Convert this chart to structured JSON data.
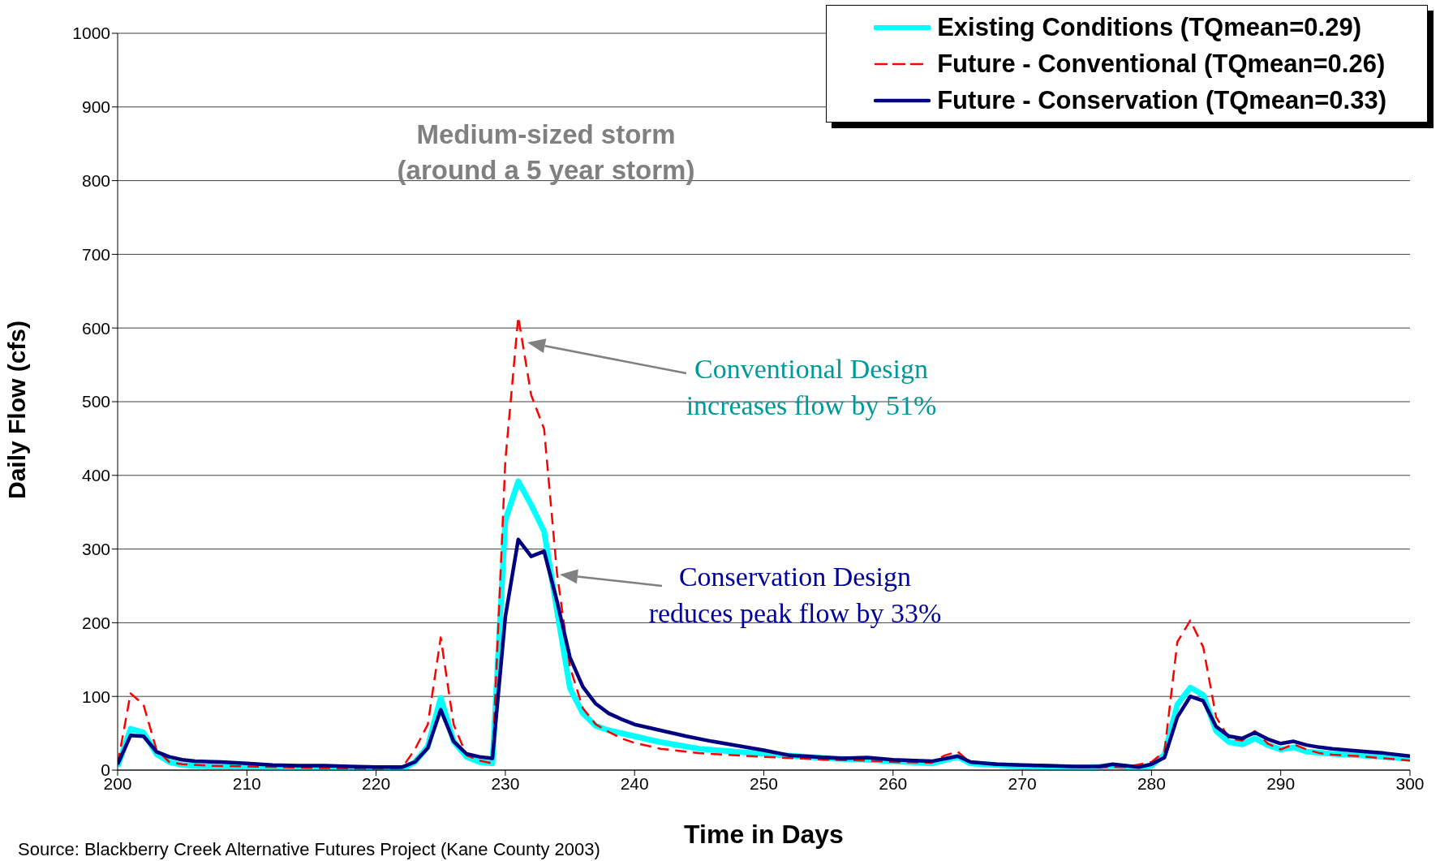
{
  "chart_data": {
    "type": "line",
    "xlabel": "Time in Days",
    "ylabel": "Daily Flow (cfs)",
    "xlim": [
      200,
      300
    ],
    "xticks": [
      200,
      210,
      220,
      230,
      240,
      250,
      260,
      270,
      280,
      290,
      300
    ],
    "ylim": [
      0,
      1000
    ],
    "yticks": [
      0,
      100,
      200,
      300,
      400,
      500,
      600,
      700,
      800,
      900,
      1000
    ],
    "grid": "y",
    "legend": "top right",
    "marker": "none",
    "series": [
      {
        "name": "Existing Conditions (TQmean=0.29)",
        "color": "#00ffff",
        "line_style": "solid",
        "x": [
          200,
          201,
          202,
          203,
          204,
          205,
          207,
          210,
          215,
          220,
          222,
          223,
          224,
          225,
          226,
          227,
          228,
          229,
          230,
          231,
          232,
          233,
          234,
          235,
          236,
          237,
          238,
          240,
          242,
          245,
          250,
          255,
          258,
          260,
          263,
          265,
          266,
          270,
          275,
          277,
          279,
          280,
          281,
          282,
          283,
          284,
          285,
          286,
          287,
          288,
          289,
          290,
          291,
          292,
          294,
          296,
          298,
          300
        ],
        "values": [
          5,
          56,
          51,
          22,
          11,
          7,
          5,
          5,
          2,
          1,
          1,
          11,
          32,
          98,
          39,
          18,
          11,
          9,
          339,
          392,
          360,
          324,
          216,
          111,
          77,
          60,
          54,
          46,
          38,
          29,
          22,
          16,
          14,
          12,
          9,
          18,
          9,
          5,
          3,
          6,
          3,
          6,
          21,
          89,
          112,
          102,
          53,
          38,
          35,
          43,
          34,
          28,
          31,
          25,
          22,
          20,
          18,
          15
        ]
      },
      {
        "name": "Future - Conventional (TQmean=0.26)",
        "color": "#ff0000",
        "line_style": "dashed",
        "x": [
          200,
          201,
          202,
          203,
          204,
          205,
          207,
          210,
          215,
          220,
          222,
          223,
          224,
          225,
          226,
          227,
          228,
          229,
          230,
          231,
          232,
          233,
          234,
          235,
          236,
          237,
          238,
          239,
          240,
          242,
          245,
          250,
          255,
          258,
          260,
          263,
          264,
          265,
          266,
          270,
          275,
          278,
          280,
          281,
          282,
          283,
          284,
          285,
          286,
          287,
          288,
          289,
          290,
          291,
          292,
          293,
          294,
          296,
          298,
          300
        ],
        "values": [
          8,
          104,
          89,
          28,
          11,
          8,
          6,
          5,
          3,
          2,
          3,
          28,
          62,
          180,
          62,
          20,
          13,
          9,
          420,
          615,
          509,
          463,
          267,
          140,
          84,
          62,
          52,
          43,
          37,
          29,
          23,
          18,
          14,
          13,
          11,
          10,
          20,
          25,
          10,
          6,
          4,
          4,
          11,
          25,
          174,
          203,
          167,
          72,
          43,
          40,
          53,
          36,
          28,
          35,
          28,
          23,
          21,
          19,
          16,
          13
        ]
      },
      {
        "name": "Future - Conservation (TQmean=0.33)",
        "color": "#000080",
        "line_style": "solid",
        "x": [
          200,
          201,
          202,
          203,
          204,
          205,
          206,
          208,
          210,
          212,
          214,
          216,
          218,
          220,
          222,
          223,
          224,
          225,
          226,
          227,
          228,
          229,
          230,
          231,
          232,
          233,
          234,
          235,
          236,
          237,
          238,
          239,
          240,
          242,
          244,
          246,
          248,
          250,
          252,
          256,
          258,
          260,
          263,
          265,
          266,
          268,
          270,
          272,
          274,
          276,
          277,
          278,
          279,
          280,
          281,
          282,
          283,
          284,
          285,
          286,
          287,
          288,
          289,
          290,
          291,
          292,
          293,
          294,
          296,
          298,
          300
        ],
        "values": [
          8,
          47,
          46,
          25,
          18,
          14,
          12,
          11,
          9,
          7,
          6,
          6,
          5,
          4,
          4,
          11,
          30,
          82,
          39,
          22,
          18,
          16,
          208,
          313,
          290,
          297,
          229,
          153,
          113,
          90,
          77,
          69,
          62,
          54,
          46,
          39,
          33,
          27,
          20,
          16,
          17,
          14,
          12,
          19,
          11,
          8,
          7,
          6,
          5,
          5,
          8,
          6,
          4,
          8,
          17,
          72,
          100,
          94,
          59,
          46,
          43,
          51,
          42,
          36,
          39,
          34,
          31,
          29,
          26,
          23,
          19
        ]
      }
    ],
    "annotations": [
      "Medium-sized storm\n(around a 5 year storm)",
      "Conventional Design\nincreases flow by 51%",
      "Conservation Design\nreduces peak flow by 33%",
      "Source: Blackberry Creek Alternative Futures Project (Kane County 2003)"
    ]
  }
}
